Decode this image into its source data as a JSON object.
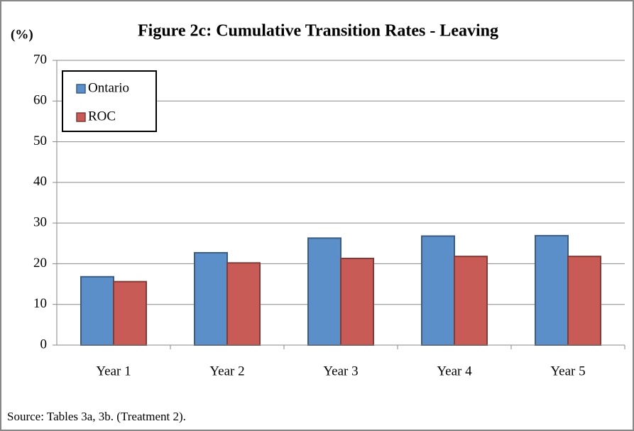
{
  "chart_data": {
    "type": "bar",
    "title": "Figure 2c: Cumulative Transition Rates - Leaving",
    "y_label": "(%)",
    "source": "Source: Tables 3a, 3b. (Treatment 2).",
    "categories": [
      "Year 1",
      "Year 2",
      "Year 3",
      "Year 4",
      "Year 5"
    ],
    "series": [
      {
        "name": "Ontario",
        "color": "#5b8fca",
        "values": [
          16.8,
          22.7,
          26.3,
          26.8,
          26.9
        ]
      },
      {
        "name": "ROC",
        "color": "#c95b56",
        "values": [
          15.6,
          20.2,
          21.3,
          21.8,
          21.8
        ]
      }
    ],
    "ylim": [
      0,
      70
    ],
    "yticks": [
      0,
      10,
      20,
      30,
      40,
      50,
      60,
      70
    ],
    "grid": true,
    "legend": "top-left"
  }
}
